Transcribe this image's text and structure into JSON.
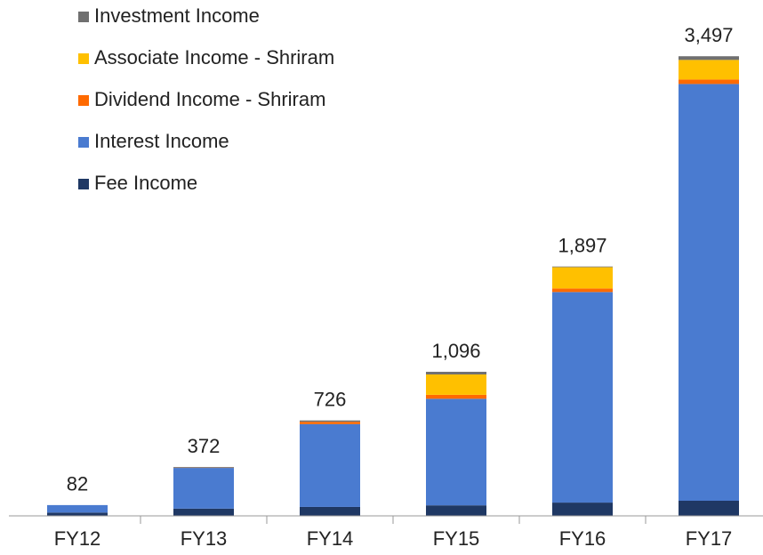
{
  "chart_data": {
    "type": "stacked_bar",
    "categories": [
      "FY12",
      "FY13",
      "FY14",
      "FY15",
      "FY16",
      "FY17"
    ],
    "series": [
      {
        "name": "Fee Income",
        "color": "#1f3864",
        "values": [
          25,
          55,
          68,
          80,
          101,
          115
        ]
      },
      {
        "name": "Interest Income",
        "color": "#4a7bd0",
        "values": [
          57,
          310,
          630,
          811,
          1602,
          3171
        ]
      },
      {
        "name": "Dividend Income - Shriram",
        "color": "#ff6a00",
        "values": [
          0,
          2,
          18,
          30,
          27,
          34
        ]
      },
      {
        "name": "Associate Income - Shriram",
        "color": "#ffc000",
        "values": [
          0,
          0,
          0,
          155,
          162,
          149
        ]
      },
      {
        "name": "Investment Income",
        "color": "#707070",
        "values": [
          0,
          5,
          10,
          20,
          5,
          28
        ]
      }
    ],
    "totals": {
      "values": [
        82,
        372,
        726,
        1096,
        1897,
        3497
      ],
      "value_labels": [
        "82",
        "372",
        "726",
        "1,096",
        "1,897",
        "3,497"
      ]
    },
    "ylim": [
      0,
      3600
    ],
    "legend": "top-left"
  }
}
